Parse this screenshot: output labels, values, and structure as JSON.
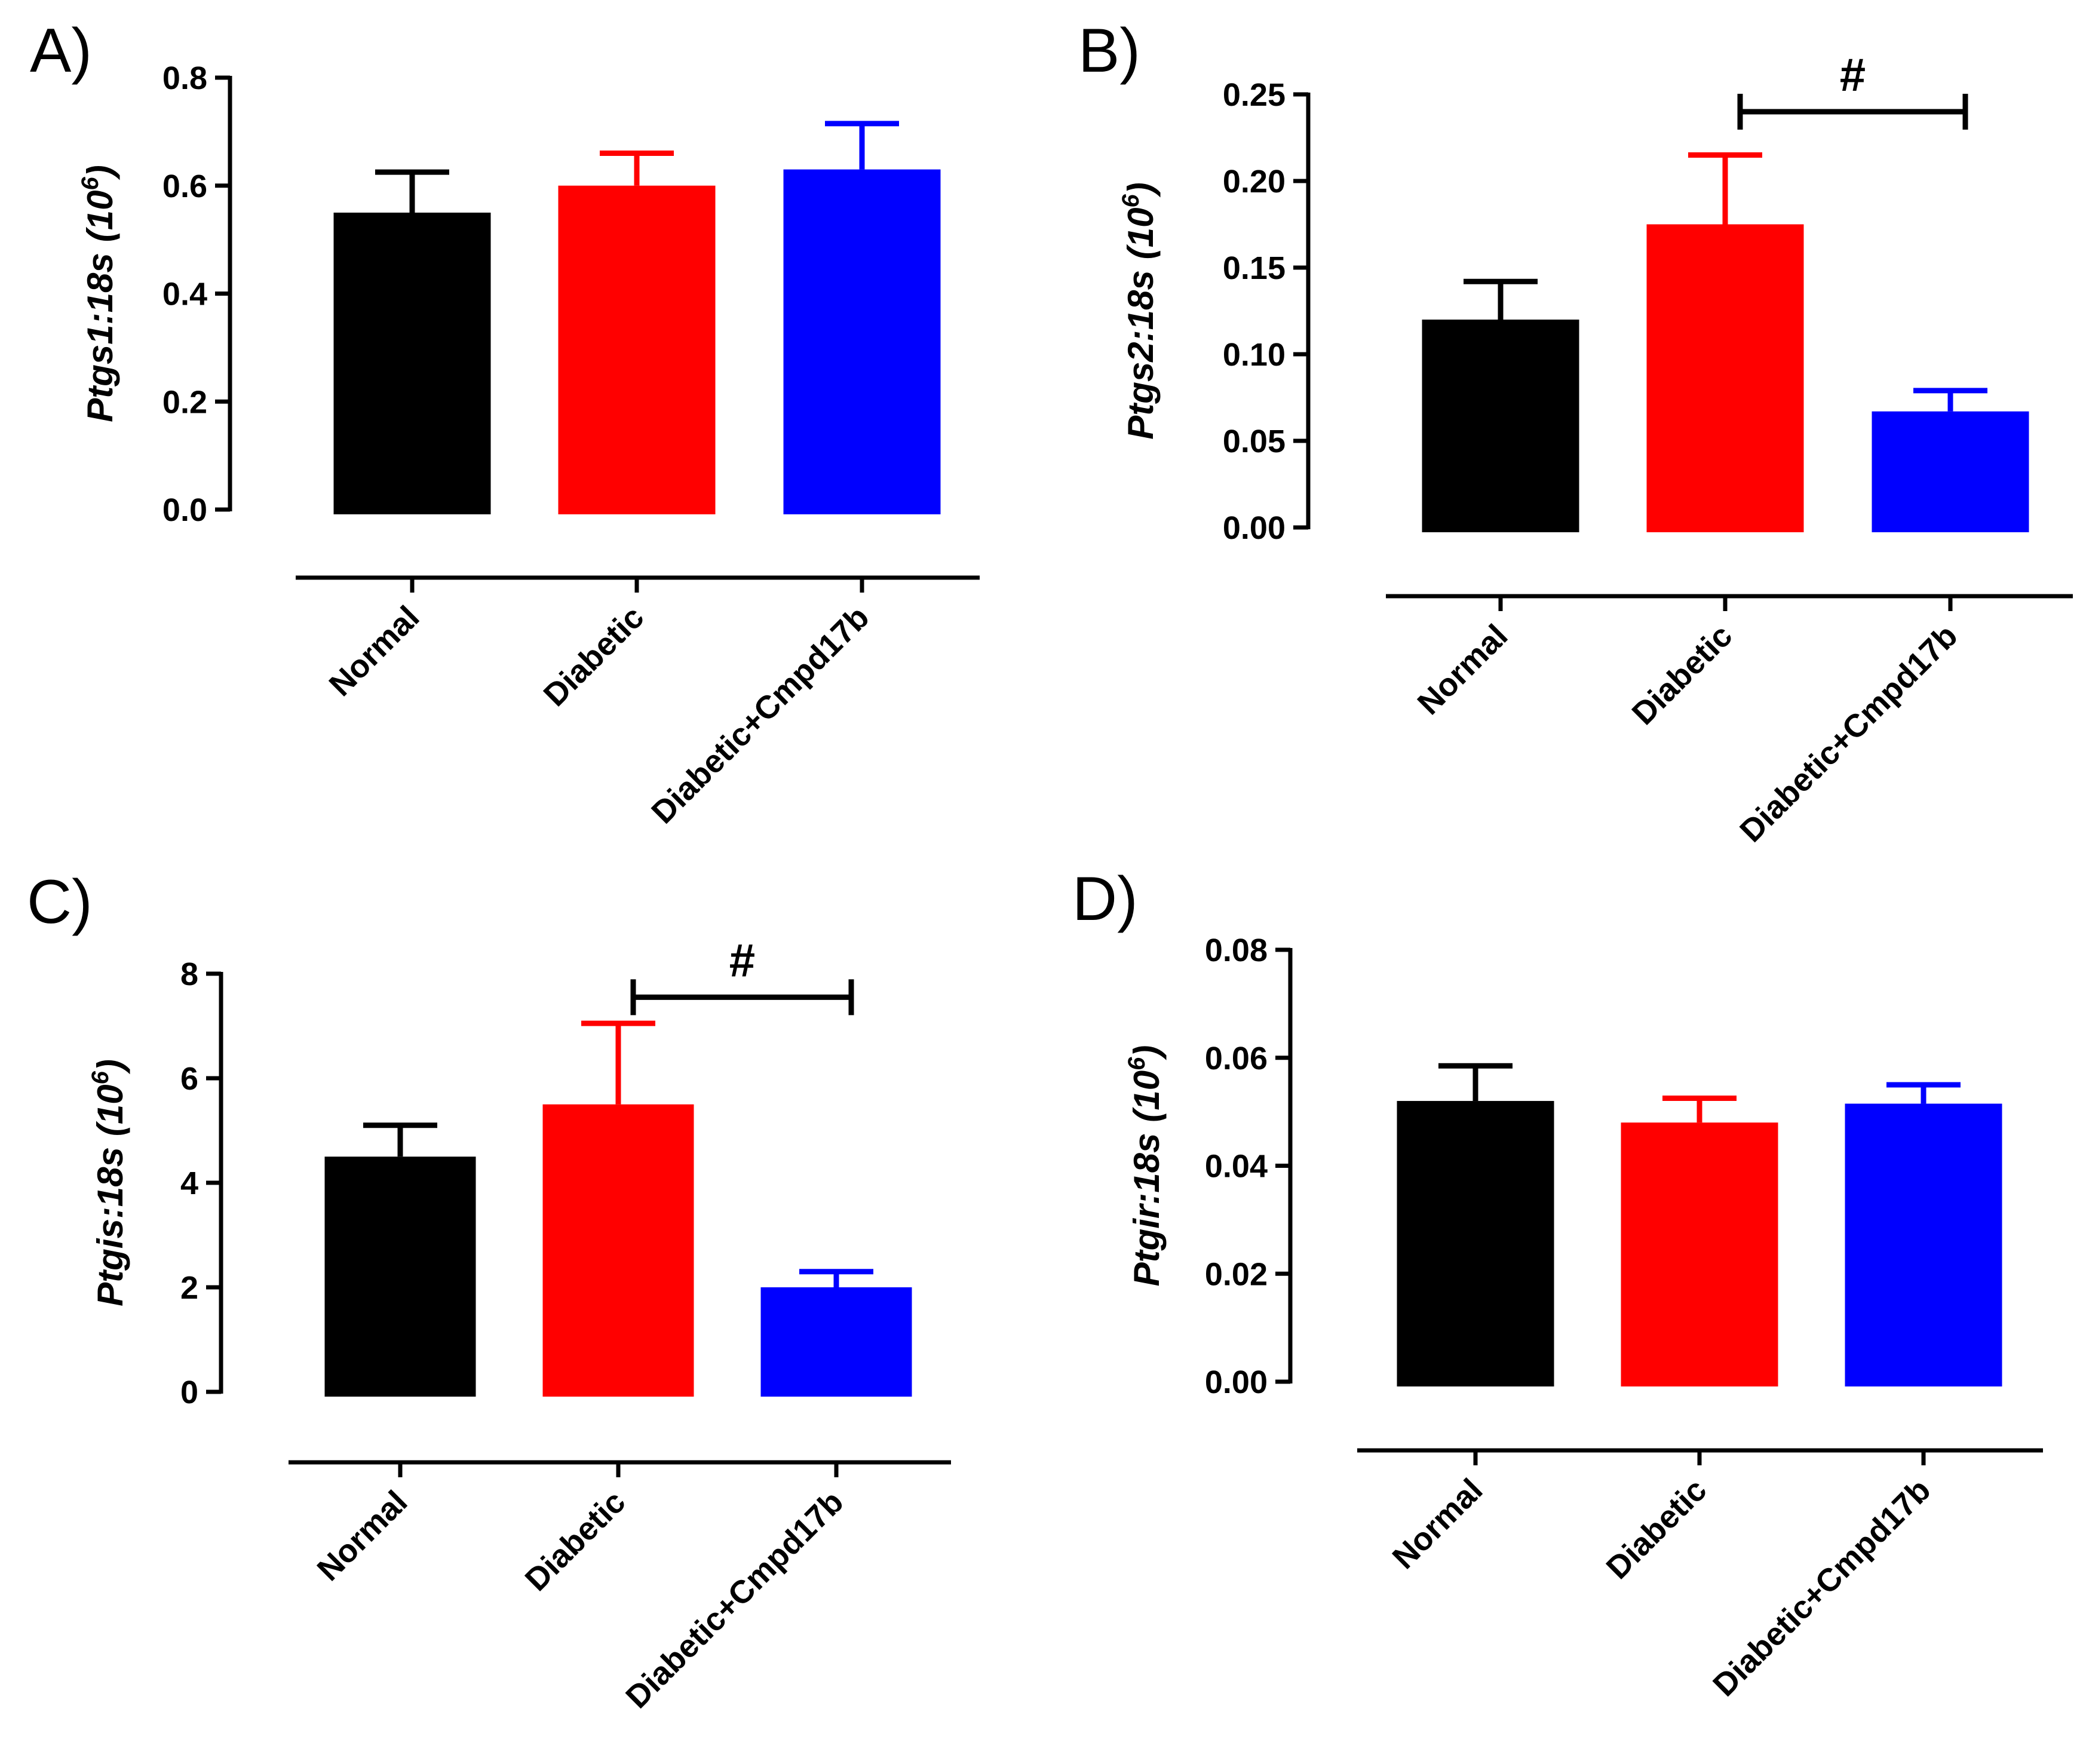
{
  "chart_data": [
    {
      "panel": "A)",
      "type": "bar",
      "categories": [
        "Normal",
        "Diabetic",
        "Diabetic+Cmpd17b"
      ],
      "values": [
        0.55,
        0.6,
        0.63
      ],
      "errors": [
        0.075,
        0.06,
        0.085
      ],
      "colors": [
        "#000000",
        "#ff0000",
        "#0000ff"
      ],
      "ylabel": "Ptgs1:18s",
      "ylabel_unit_base": "10",
      "ylabel_unit_exp": "6",
      "ylim": [
        0,
        0.8
      ],
      "yticks": [
        "0.0",
        "0.2",
        "0.4",
        "0.6",
        "0.8"
      ],
      "significance": null
    },
    {
      "panel": "B)",
      "type": "bar",
      "categories": [
        "Normal",
        "Diabetic",
        "Diabetic+Cmpd17b"
      ],
      "values": [
        0.12,
        0.175,
        0.067
      ],
      "errors": [
        0.022,
        0.04,
        0.012
      ],
      "colors": [
        "#000000",
        "#ff0000",
        "#0000ff"
      ],
      "ylabel": "Ptgs2:18s",
      "ylabel_unit_base": "10",
      "ylabel_unit_exp": "6",
      "ylim": [
        0,
        0.25
      ],
      "yticks": [
        "0.00",
        "0.05",
        "0.10",
        "0.15",
        "0.20",
        "0.25"
      ],
      "significance": {
        "from": 1,
        "to": 2,
        "label": "#",
        "y": 0.24
      }
    },
    {
      "panel": "C)",
      "type": "bar",
      "categories": [
        "Normal",
        "Diabetic",
        "Diabetic+Cmpd17b"
      ],
      "values": [
        4.5,
        5.5,
        2.0
      ],
      "errors": [
        0.6,
        1.55,
        0.3
      ],
      "colors": [
        "#000000",
        "#ff0000",
        "#0000ff"
      ],
      "ylabel": "Ptgis:18s",
      "ylabel_unit_base": "10",
      "ylabel_unit_exp": "6",
      "ylim": [
        0,
        8
      ],
      "yticks": [
        "0",
        "2",
        "4",
        "6",
        "8"
      ],
      "significance": {
        "from": 1,
        "to": 2,
        "label": "#",
        "y": 7.55
      }
    },
    {
      "panel": "D)",
      "type": "bar",
      "categories": [
        "Normal",
        "Diabetic",
        "Diabetic+Cmpd17b"
      ],
      "values": [
        0.052,
        0.048,
        0.0515
      ],
      "errors": [
        0.0065,
        0.0045,
        0.0035
      ],
      "colors": [
        "#000000",
        "#ff0000",
        "#0000ff"
      ],
      "ylabel": "Ptgir:18s",
      "ylabel_unit_base": "10",
      "ylabel_unit_exp": "6",
      "ylim": [
        0,
        0.08
      ],
      "yticks": [
        "0.00",
        "0.02",
        "0.04",
        "0.06",
        "0.08"
      ],
      "significance": null
    }
  ]
}
